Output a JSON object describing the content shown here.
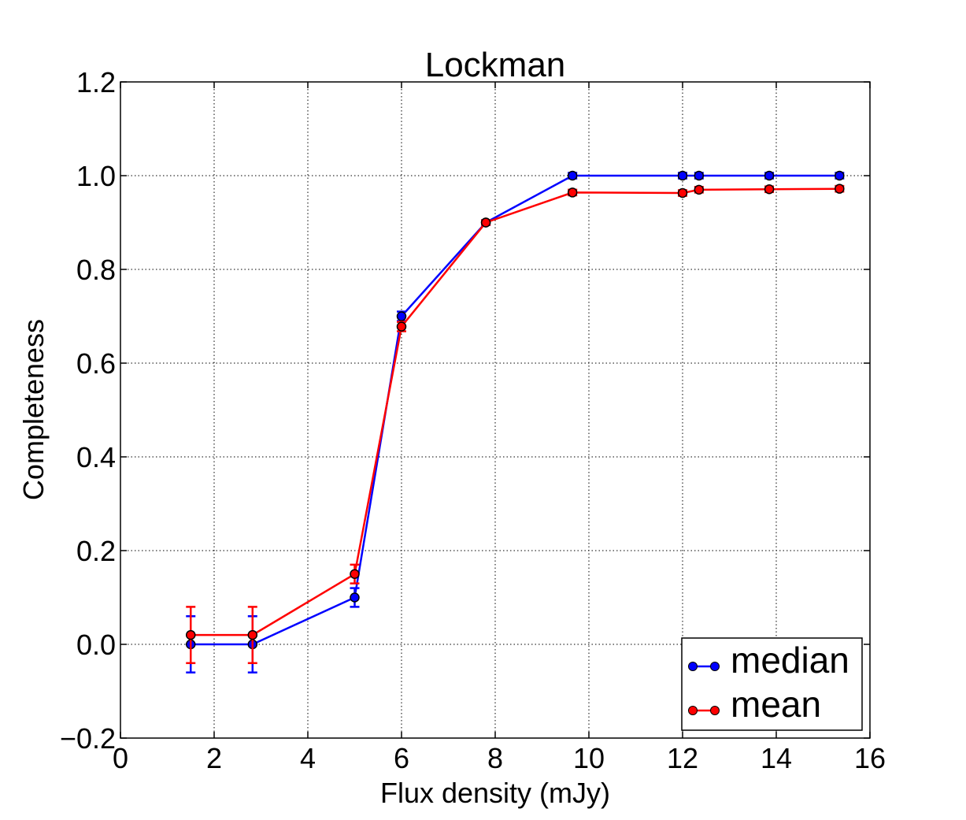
{
  "chart_data": {
    "type": "line",
    "title": "Lockman",
    "xlabel": "Flux density (mJy)",
    "ylabel": "Completeness",
    "xlim": [
      0,
      16
    ],
    "ylim": [
      -0.2,
      1.2
    ],
    "xticks": [
      0,
      2,
      4,
      6,
      8,
      10,
      12,
      14,
      16
    ],
    "xtick_labels": [
      "0",
      "2",
      "4",
      "6",
      "8",
      "10",
      "12",
      "14",
      "16"
    ],
    "yticks": [
      -0.2,
      0.0,
      0.2,
      0.4,
      0.6,
      0.8,
      1.0,
      1.2
    ],
    "ytick_labels": [
      "−0.2",
      "0.0",
      "0.2",
      "0.4",
      "0.6",
      "0.8",
      "1.0",
      "1.2"
    ],
    "grid": true,
    "legend_position": "lower-right",
    "series": [
      {
        "name": "median",
        "color": "#0000ff",
        "x": [
          1.5,
          2.82,
          5.0,
          6.0,
          7.8,
          9.65,
          12.0,
          12.35,
          13.85,
          15.35
        ],
        "y": [
          0.0,
          0.0,
          0.1,
          0.7,
          0.9,
          1.0,
          1.0,
          1.0,
          1.0,
          1.0
        ],
        "yerr": [
          0.06,
          0.06,
          0.02,
          0.01,
          0.005,
          0.006,
          0.006,
          0.006,
          0.006,
          0.006
        ]
      },
      {
        "name": "mean",
        "color": "#ff0000",
        "x": [
          1.5,
          2.82,
          5.0,
          6.0,
          7.8,
          9.65,
          12.0,
          12.35,
          13.85,
          15.35
        ],
        "y": [
          0.02,
          0.02,
          0.15,
          0.678,
          0.9,
          0.964,
          0.963,
          0.97,
          0.971,
          0.972
        ],
        "yerr": [
          0.06,
          0.06,
          0.02,
          0.01,
          0.005,
          0.006,
          0.006,
          0.006,
          0.006,
          0.006
        ]
      }
    ]
  }
}
